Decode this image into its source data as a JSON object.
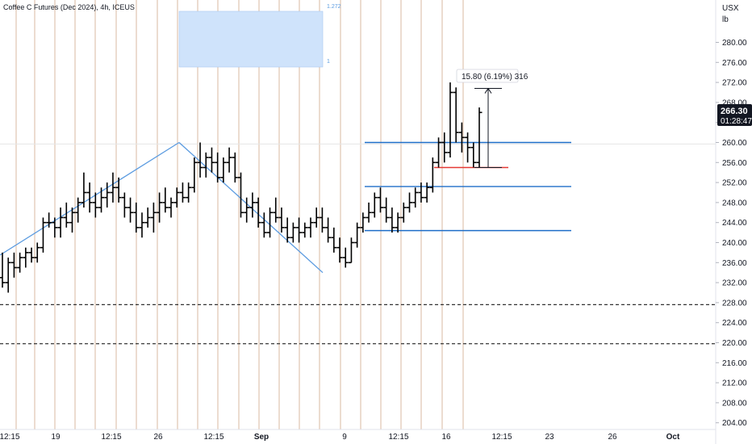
{
  "header": {
    "title": "Coffee C Futures (Dec 2024), 4h, ICEUS",
    "currency": "USX",
    "unit": "lb"
  },
  "last_price": {
    "value": "266.30",
    "countdown": "01:28:47"
  },
  "measure": {
    "label": "15.80 (6.19%) 316",
    "from": 255.0,
    "to": 270.8
  },
  "fib_labels": {
    "top": "1.272",
    "bottom": "1"
  },
  "colors": {
    "candle": "#000000",
    "vline": "#d9b8a0",
    "blue_line": "#1e6ec8",
    "trend_line": "#5b9be0",
    "red_line": "#e53935",
    "fib_fill": "#cfe3fb",
    "dash": "#333333",
    "badge_bg": "#131722"
  },
  "chart_data": {
    "type": "ohlc",
    "title": "Coffee C Futures (Dec 2024), 4h, ICEUS",
    "ylim": [
      202,
      284
    ],
    "y_ticks": [
      "280.00",
      "276.00",
      "272.00",
      "268.00",
      "264.00",
      "260.00",
      "256.00",
      "252.00",
      "248.00",
      "244.00",
      "240.00",
      "236.00",
      "232.00",
      "228.00",
      "224.00",
      "220.00",
      "216.00",
      "212.00",
      "208.00",
      "204.00"
    ],
    "x_ticks": [
      "12:15",
      "19",
      "12:15",
      "26",
      "12:15",
      "Sep",
      "9",
      "12:15",
      "16",
      "12:15",
      "23",
      "26",
      "Oct"
    ],
    "horizontal_levels": [
      260.0,
      251.2,
      242.4
    ],
    "dashed_levels": [
      227.6,
      219.8
    ],
    "red_level": 255.0,
    "trend_lines": [
      {
        "x1": 0,
        "y1": 237.5,
        "x2": 222,
        "y2": 260.0
      },
      {
        "x1": 222,
        "y1": 260.0,
        "x2": 400,
        "y2": 234.0
      }
    ],
    "fib_zone": {
      "x1": 222,
      "x2": 400,
      "top": 278.5,
      "bottom": 275.0
    },
    "ohlc": [
      [
        233,
        238,
        231,
        232
      ],
      [
        232,
        237,
        230,
        236
      ],
      [
        236,
        238,
        233,
        235
      ],
      [
        235,
        238,
        234,
        237
      ],
      [
        237,
        239,
        235,
        238
      ],
      [
        238,
        239,
        236,
        237
      ],
      [
        237,
        240,
        236,
        239
      ],
      [
        239,
        245,
        238,
        244
      ],
      [
        244,
        246,
        243,
        244
      ],
      [
        244,
        245,
        241,
        243
      ],
      [
        243,
        247,
        241,
        245
      ],
      [
        245,
        248,
        243,
        244
      ],
      [
        244,
        247,
        242,
        246
      ],
      [
        246,
        249,
        244,
        248
      ],
      [
        248,
        254,
        247,
        250
      ],
      [
        250,
        252,
        246,
        248
      ],
      [
        248,
        250,
        245,
        247
      ],
      [
        247,
        251,
        246,
        249
      ],
      [
        249,
        252,
        247,
        250
      ],
      [
        250,
        254,
        248,
        251
      ],
      [
        251,
        253,
        248,
        249
      ],
      [
        249,
        250,
        245,
        247
      ],
      [
        247,
        249,
        244,
        246
      ],
      [
        246,
        248,
        242,
        243
      ],
      [
        243,
        246,
        241,
        244
      ],
      [
        244,
        247,
        243,
        245
      ],
      [
        245,
        248,
        242,
        246
      ],
      [
        246,
        250,
        244,
        248
      ],
      [
        248,
        251,
        246,
        247
      ],
      [
        247,
        249,
        245,
        248
      ],
      [
        248,
        251,
        247,
        250
      ],
      [
        250,
        252,
        248,
        249
      ],
      [
        249,
        252,
        248,
        251
      ],
      [
        251,
        257,
        250,
        256
      ],
      [
        256,
        260,
        253,
        255
      ],
      [
        255,
        258,
        253,
        257
      ],
      [
        257,
        259,
        254,
        256
      ],
      [
        256,
        258,
        252,
        253
      ],
      [
        253,
        257,
        252,
        256
      ],
      [
        256,
        259,
        254,
        257
      ],
      [
        257,
        258,
        252,
        253
      ],
      [
        253,
        254,
        245,
        246
      ],
      [
        246,
        249,
        244,
        247
      ],
      [
        247,
        250,
        245,
        248
      ],
      [
        248,
        249,
        243,
        244
      ],
      [
        244,
        246,
        241,
        242
      ],
      [
        242,
        247,
        241,
        246
      ],
      [
        246,
        249,
        244,
        245
      ],
      [
        245,
        247,
        242,
        243
      ],
      [
        243,
        245,
        240,
        241
      ],
      [
        241,
        244,
        240,
        243
      ],
      [
        243,
        245,
        240,
        242
      ],
      [
        242,
        244,
        241,
        243
      ],
      [
        243,
        245,
        241,
        244
      ],
      [
        244,
        247,
        243,
        245
      ],
      [
        245,
        247,
        242,
        243
      ],
      [
        243,
        245,
        240,
        241
      ],
      [
        241,
        243,
        238,
        239
      ],
      [
        239,
        241,
        236,
        237
      ],
      [
        237,
        239,
        235,
        236
      ],
      [
        236,
        241,
        236,
        240
      ],
      [
        240,
        244,
        239,
        243
      ],
      [
        243,
        246,
        242,
        245
      ],
      [
        245,
        248,
        244,
        246
      ],
      [
        246,
        250,
        245,
        249
      ],
      [
        249,
        251,
        246,
        247
      ],
      [
        247,
        249,
        244,
        245
      ],
      [
        245,
        247,
        242,
        243
      ],
      [
        243,
        246,
        242,
        245
      ],
      [
        245,
        248,
        244,
        247
      ],
      [
        247,
        250,
        246,
        248
      ],
      [
        248,
        251,
        247,
        250
      ],
      [
        250,
        252,
        248,
        249
      ],
      [
        249,
        252,
        248,
        251
      ],
      [
        251,
        257,
        250,
        256
      ],
      [
        256,
        261,
        255,
        260
      ],
      [
        260,
        262,
        256,
        258
      ],
      [
        258,
        272,
        257,
        270
      ],
      [
        270,
        271,
        260,
        262
      ],
      [
        262,
        264,
        258,
        261
      ],
      [
        261,
        262,
        256,
        259
      ],
      [
        259,
        260,
        255,
        256
      ],
      [
        256,
        267,
        255,
        266
      ]
    ]
  }
}
